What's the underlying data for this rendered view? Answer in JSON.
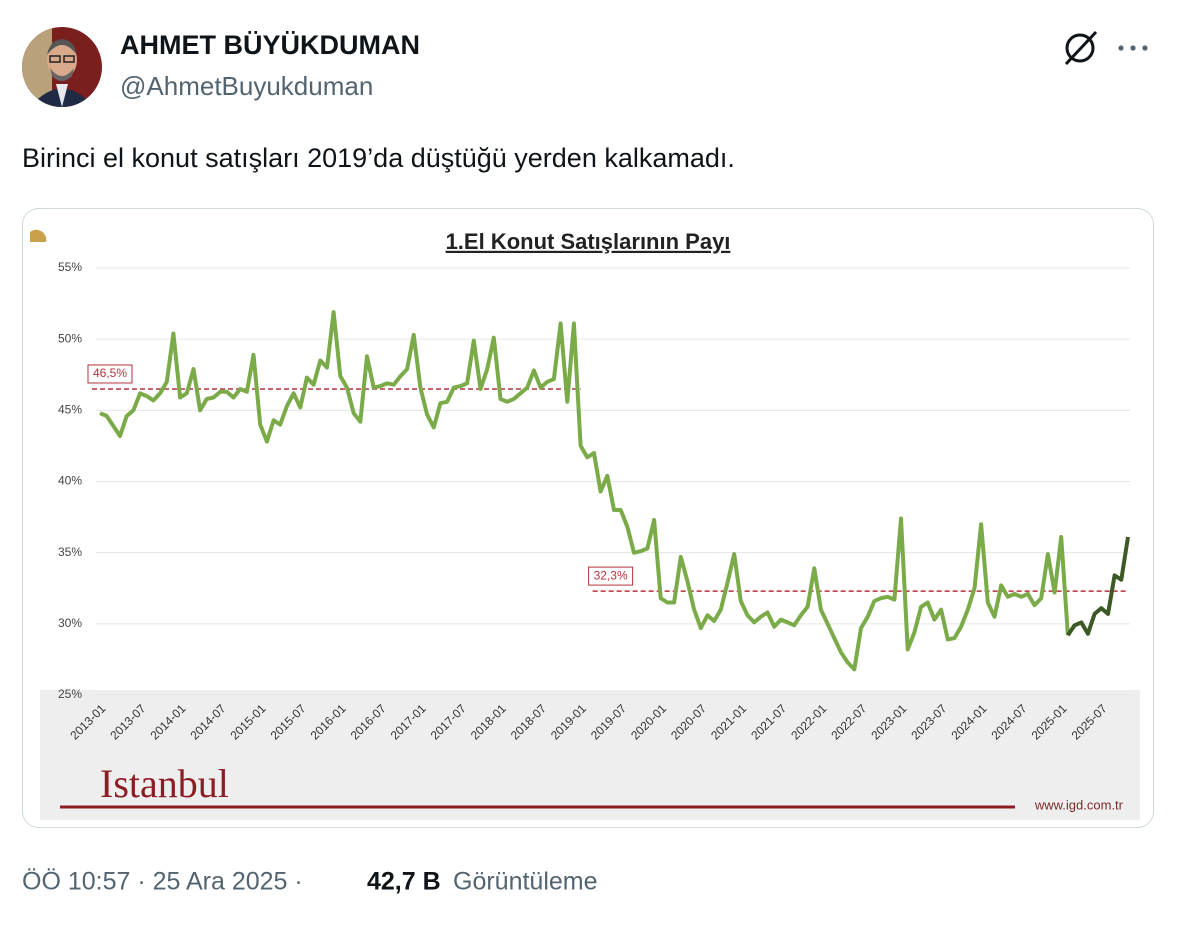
{
  "author": {
    "name": "AHMET BÜYÜKDUMAN",
    "handle": "@AhmetBuyukduman"
  },
  "text": "Birinci el konut satışları 2019’da düştüğü yerden kalkamadı.",
  "footer": {
    "time": "ÖÖ 10:57 · 25 Ara 2025 ·",
    "views": "42,7 B",
    "views_label": "Görüntüleme"
  },
  "chart_data": {
    "type": "line",
    "title": "1.El Konut Satışlarının Payı",
    "logo": "Istanbul",
    "source": "www.igd.com.tr",
    "categories": [
      "2013-01",
      null,
      null,
      null,
      null,
      null,
      "2013-07",
      null,
      null,
      null,
      null,
      null,
      "2014-01",
      null,
      null,
      null,
      null,
      null,
      "2014-07",
      null,
      null,
      null,
      null,
      null,
      "2015-01",
      null,
      null,
      null,
      null,
      null,
      "2015-07",
      null,
      null,
      null,
      null,
      null,
      "2016-01",
      null,
      null,
      null,
      null,
      null,
      "2016-07",
      null,
      null,
      null,
      null,
      null,
      "2017-01",
      null,
      null,
      null,
      null,
      null,
      "2017-07",
      null,
      null,
      null,
      null,
      null,
      "2018-01",
      null,
      null,
      null,
      null,
      null,
      "2018-07",
      null,
      null,
      null,
      null,
      null,
      "2019-01",
      null,
      null,
      null,
      null,
      null,
      "2019-07",
      null,
      null,
      null,
      null,
      null,
      "2020-01",
      null,
      null,
      null,
      null,
      null,
      "2020-07",
      null,
      null,
      null,
      null,
      null,
      "2021-01",
      null,
      null,
      null,
      null,
      null,
      "2021-07",
      null,
      null,
      null,
      null,
      null,
      "2022-01",
      null,
      null,
      null,
      null,
      null,
      "2022-07",
      null,
      null,
      null,
      null,
      null,
      "2023-01",
      null,
      null,
      null,
      null,
      null,
      "2023-07",
      null,
      null,
      null,
      null,
      null,
      "2024-01",
      null,
      null,
      null,
      null,
      null,
      "2024-07",
      null,
      null,
      null,
      null,
      null,
      "2025-01",
      null,
      null,
      null,
      null,
      null,
      "2025-07",
      null,
      null,
      null,
      null
    ],
    "series": [
      {
        "color": "#7aab48",
        "values": [
          44.8,
          44.6,
          43.9,
          43.2,
          44.6,
          45.0,
          46.2,
          46.0,
          45.7,
          46.2,
          47.0,
          50.4,
          45.9,
          46.2,
          47.9,
          45.0,
          45.8,
          45.9,
          46.3,
          46.3,
          45.9,
          46.5,
          46.3,
          48.9,
          44.0,
          42.8,
          44.3,
          44.0,
          45.3,
          46.2,
          45.2,
          47.3,
          46.8,
          48.5,
          48.0,
          51.9,
          47.4,
          46.6,
          44.8,
          44.2,
          48.8,
          46.6,
          46.7,
          46.9,
          46.8,
          47.4,
          47.9,
          50.3,
          46.6,
          44.7,
          43.8,
          45.5,
          45.6,
          46.6,
          46.7,
          46.9,
          49.9,
          46.5,
          47.9,
          50.1,
          45.8,
          45.6,
          45.8,
          46.2,
          46.6,
          47.8,
          46.6,
          47.0,
          47.2,
          51.1,
          45.6,
          51.1,
          42.5,
          41.7,
          42.0,
          39.3,
          40.4,
          38.0,
          38.0,
          36.8,
          35.0,
          35.1,
          35.3,
          37.3,
          31.8,
          31.5,
          31.5,
          34.7,
          33.0,
          31.0,
          29.7,
          30.6,
          30.2,
          31.0,
          32.9,
          34.9,
          31.6,
          30.6,
          30.1,
          30.5,
          30.8,
          29.8,
          30.3,
          30.1,
          29.9,
          30.6,
          31.2,
          33.9,
          31.0,
          30.0,
          29.0,
          28.0,
          27.3,
          26.8,
          29.7,
          30.5,
          31.6,
          31.8,
          31.9,
          31.7,
          37.4,
          28.2,
          29.4,
          31.2,
          31.5,
          30.3,
          31.0,
          28.9,
          29.0,
          29.8,
          31.0,
          32.5,
          37.0,
          31.5,
          30.5,
          32.7,
          31.9,
          32.1,
          31.9,
          32.1,
          31.3,
          31.8,
          34.9,
          32.2,
          36.1,
          29.2,
          null,
          null,
          null,
          null,
          null,
          null,
          null,
          null,
          null
        ]
      },
      {
        "color": "#3d5a26",
        "values": [
          null,
          null,
          null,
          null,
          null,
          null,
          null,
          null,
          null,
          null,
          null,
          null,
          null,
          null,
          null,
          null,
          null,
          null,
          null,
          null,
          null,
          null,
          null,
          null,
          null,
          null,
          null,
          null,
          null,
          null,
          null,
          null,
          null,
          null,
          null,
          null,
          null,
          null,
          null,
          null,
          null,
          null,
          null,
          null,
          null,
          null,
          null,
          null,
          null,
          null,
          null,
          null,
          null,
          null,
          null,
          null,
          null,
          null,
          null,
          null,
          null,
          null,
          null,
          null,
          null,
          null,
          null,
          null,
          null,
          null,
          null,
          null,
          null,
          null,
          null,
          null,
          null,
          null,
          null,
          null,
          null,
          null,
          null,
          null,
          null,
          null,
          null,
          null,
          null,
          null,
          null,
          null,
          null,
          null,
          null,
          null,
          null,
          null,
          null,
          null,
          null,
          null,
          null,
          null,
          null,
          null,
          null,
          null,
          null,
          null,
          null,
          null,
          null,
          null,
          null,
          null,
          null,
          null,
          null,
          null,
          null,
          null,
          null,
          null,
          null,
          null,
          null,
          null,
          null,
          null,
          null,
          null,
          null,
          null,
          null,
          null,
          null,
          null,
          null,
          null,
          null,
          null,
          null,
          null,
          null,
          29.2,
          29.9,
          30.1,
          29.3,
          30.7,
          31.1,
          30.7,
          33.4,
          33.1,
          36.1
        ]
      }
    ],
    "reference_lines": [
      {
        "value": 46.5,
        "label": "46,5%",
        "from": "2013-01",
        "to": "2019-01",
        "color": "#b5323d"
      },
      {
        "value": 32.3,
        "label": "32,3%",
        "from": "2019-01",
        "color": "#b5323d"
      }
    ],
    "ylim": [
      25,
      55
    ],
    "yticks": [
      {
        "value": 25,
        "label": "25%"
      },
      {
        "value": 30,
        "label": "30%"
      },
      {
        "value": 35,
        "label": "35%"
      },
      {
        "value": 40,
        "label": "40%"
      },
      {
        "value": 45,
        "label": "45%"
      },
      {
        "value": 50,
        "label": "50%"
      },
      {
        "value": 55,
        "label": "55%"
      }
    ],
    "grid": true
  }
}
